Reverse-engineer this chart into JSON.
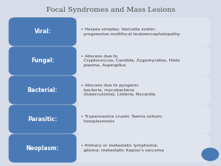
{
  "title": "Focal Syndromes and Mass Lesions",
  "title_color": "#4a4a4a",
  "bg_color": "#d6dde8",
  "left_box_color": "#4a7ab5",
  "right_box_color": "#e0e4ed",
  "left_text_color": "#ffffff",
  "right_text_color": "#333333",
  "rows": [
    {
      "label": "Viral:",
      "content": "• Herpes simplex; Varicella zoster;\n  progressive multifocal leukoencephalopathy"
    },
    {
      "label": "Fungal:",
      "content": "• Abscess due to\n  Cryptococcus, Candida, Zygomycetes, Histo\n  plasma, Aspergillus"
    },
    {
      "label": "Bacterial:",
      "content": "• Abscess due to pyogenic\n  bacteria, mycobacteria\n  (tuberculoma), Listeria, Nocardia"
    },
    {
      "label": "Parasitic:",
      "content": "• Trypanosoma cruzei; Taenia solium;\n  toxoplasmosis"
    },
    {
      "label": "Neoplasm:",
      "content": "• Primary or metastatic lymphoma;\n  glioma; metastatic Kaposi’s sarcoma"
    }
  ],
  "circle_color": "#4a7ab5",
  "figsize": [
    3.2,
    2.4
  ],
  "dpi": 100
}
